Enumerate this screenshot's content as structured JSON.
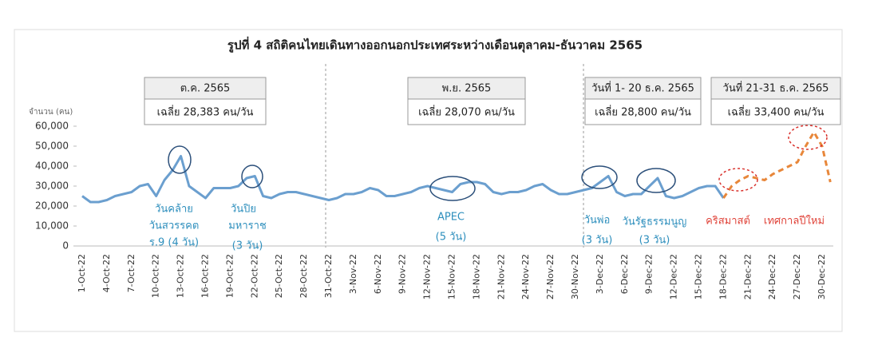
{
  "chart_data": {
    "type": "line",
    "title": "รูปที่ 4 สถิติคนไทยเดินทางออกนอกประเทศระหว่างเดือนตุลาคม-ธันวาคม 2565",
    "y_axis_label": "จำนวน (คน)",
    "categories": [
      "1-Oct-22",
      null,
      null,
      "4-Oct-22",
      null,
      null,
      "7-Oct-22",
      null,
      null,
      "10-Oct-22",
      null,
      null,
      "13-Oct-22",
      null,
      null,
      "16-Oct-22",
      null,
      null,
      "19-Oct-22",
      null,
      null,
      "22-Oct-22",
      null,
      null,
      "25-Oct-22",
      null,
      null,
      "28-Oct-22",
      null,
      null,
      "31-Oct-22",
      null,
      null,
      "3-Nov-22",
      null,
      null,
      "6-Nov-22",
      null,
      null,
      "9-Nov-22",
      null,
      null,
      "12-Nov-22",
      null,
      null,
      "15-Nov-22",
      null,
      null,
      "18-Nov-22",
      null,
      null,
      "21-Nov-22",
      null,
      null,
      "24-Nov-22",
      null,
      null,
      "27-Nov-22",
      null,
      null,
      "30-Nov-22",
      null,
      null,
      "3-Dec-22",
      null,
      null,
      "6-Dec-22",
      null,
      null,
      "9-Dec-22",
      null,
      null,
      "12-Dec-22",
      null,
      null,
      "15-Dec-22",
      null,
      null,
      "18-Dec-22",
      null,
      null,
      "21-Dec-22",
      null,
      null,
      "24-Dec-22",
      null,
      null,
      "27-Dec-22",
      null,
      null,
      "30-Dec-22",
      null
    ],
    "series": [
      {
        "color": "#6b9fcf",
        "dashed": false,
        "values": [
          25000,
          22000,
          22000,
          23000,
          25000,
          26000,
          27000,
          30000,
          31000,
          25000,
          33000,
          38000,
          45000,
          30000,
          27000,
          24000,
          29000,
          29000,
          29000,
          30000,
          34000,
          35000,
          25000,
          24000,
          26000,
          27000,
          27000,
          26000,
          25000,
          24000,
          23000,
          24000,
          26000,
          26000,
          27000,
          29000,
          28000,
          25000,
          25000,
          26000,
          27000,
          29000,
          30000,
          29000,
          28000,
          27000,
          31000,
          32000,
          32000,
          31000,
          27000,
          26000,
          27000,
          27000,
          28000,
          30000,
          31000,
          28000,
          26000,
          26000,
          27000,
          28000,
          29000,
          32000,
          35000,
          27000,
          25000,
          26000,
          26000,
          30000,
          34000,
          25000,
          24000,
          25000,
          27000,
          29000,
          30000,
          30000,
          24000,
          null,
          null,
          null,
          null,
          null,
          null,
          null,
          null,
          null,
          null,
          null,
          null,
          null
        ]
      },
      {
        "color": "#e8873a",
        "dashed": true,
        "values": [
          null,
          null,
          null,
          null,
          null,
          null,
          null,
          null,
          null,
          null,
          null,
          null,
          null,
          null,
          null,
          null,
          null,
          null,
          null,
          null,
          null,
          null,
          null,
          null,
          null,
          null,
          null,
          null,
          null,
          null,
          null,
          null,
          null,
          null,
          null,
          null,
          null,
          null,
          null,
          null,
          null,
          null,
          null,
          null,
          null,
          null,
          null,
          null,
          null,
          null,
          null,
          null,
          null,
          null,
          null,
          null,
          null,
          null,
          null,
          null,
          null,
          null,
          null,
          null,
          null,
          null,
          null,
          null,
          null,
          null,
          null,
          null,
          null,
          null,
          null,
          null,
          null,
          null,
          24000,
          30000,
          33000,
          35000,
          34000,
          33000,
          36000,
          38000,
          40000,
          42000,
          50000,
          57000,
          50000,
          32000
        ]
      }
    ],
    "ylim": [
      0,
      60000
    ],
    "yticks": [
      0,
      {
        "value": 10000,
        "label": "10,000"
      },
      {
        "value": 20000,
        "label": "20,000"
      },
      {
        "value": 30000,
        "label": "30,000"
      },
      {
        "value": 40000,
        "label": "40,000"
      },
      {
        "value": 50000,
        "label": "50,000"
      },
      {
        "value": 60000,
        "label": "60,000"
      }
    ],
    "boxes": [
      {
        "title": "ต.ค. 2565",
        "text": "เฉลี่ย 28,383 คน/วัน"
      },
      {
        "title": "พ.ย. 2565",
        "text": "เฉลี่ย 28,070 คน/วัน"
      },
      {
        "title": "วันที่ 1- 20 ธ.ค. 2565",
        "text": "เฉลี่ย 28,800 คน/วัน"
      },
      {
        "title": "วันที่ 21-31 ธ.ค. 2565",
        "text": "เฉลี่ย 33,400 คน/วัน"
      }
    ],
    "annotations": [
      {
        "text": "วันคล้าย",
        "color": "#2e8fbd"
      },
      {
        "text": "วันสวรรคต",
        "color": "#2e8fbd"
      },
      {
        "text": "ร.9 (4 วัน)",
        "color": "#2e8fbd"
      },
      {
        "text": "วันปิย",
        "color": "#2e8fbd"
      },
      {
        "text": "มหาราช",
        "color": "#2e8fbd"
      },
      {
        "text": "(3 วัน)",
        "color": "#2e8fbd"
      },
      {
        "text": "APEC",
        "color": "#2e8fbd"
      },
      {
        "text": "(5 วัน)",
        "color": "#2e8fbd"
      },
      {
        "text": "วันพ่อ",
        "color": "#2e8fbd"
      },
      {
        "text": "(3 วัน)",
        "color": "#2e8fbd"
      },
      {
        "text": "วันรัฐธรรมนูญ",
        "color": "#2e8fbd"
      },
      {
        "text": "(3 วัน)",
        "color": "#2e8fbd"
      },
      {
        "text": "คริสมาสต์",
        "color": "#e0443a"
      },
      {
        "text": "เทศกาลปีใหม่",
        "color": "#e0443a"
      }
    ]
  }
}
